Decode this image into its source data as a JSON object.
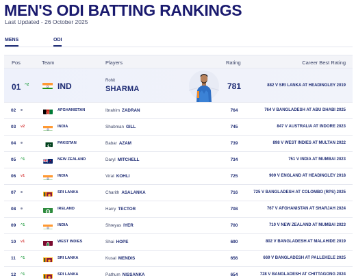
{
  "page": {
    "title": "MEN'S ODI BATTING RANKINGS",
    "updated": "Last Updated - 26 October 2025"
  },
  "tabs": [
    {
      "label": "MENS",
      "active": true
    },
    {
      "label": "ODI",
      "active": true
    }
  ],
  "table": {
    "headers": {
      "pos": "Pos",
      "team": "Team",
      "players": "Players",
      "rating": "Rating",
      "best": "Career Best Rating"
    },
    "top": {
      "pos": "01",
      "move": "2",
      "move_dir": "up",
      "flag": "india-flag-icon",
      "team": "IND",
      "first": "Rohit",
      "last": "SHARMA",
      "rating": "781",
      "best": "882 V SRI LANKA AT HEADINGLEY 2019"
    },
    "rows": [
      {
        "pos": "02",
        "move": "",
        "move_dir": "same",
        "flag": "afghanistan-flag-icon",
        "team": "AFGHANISTAN",
        "first": "Ibrahim",
        "last": "ZADRAN",
        "rating": "764",
        "best": "764 V BANGLADESH AT ABU DHABI 2025"
      },
      {
        "pos": "03",
        "move": "2",
        "move_dir": "down",
        "flag": "india-flag-icon",
        "team": "INDIA",
        "first": "Shubman",
        "last": "GILL",
        "rating": "745",
        "best": "847 V AUSTRALIA AT INDORE 2023"
      },
      {
        "pos": "04",
        "move": "",
        "move_dir": "same",
        "flag": "pakistan-flag-icon",
        "team": "PAKISTAN",
        "first": "Babar",
        "last": "AZAM",
        "rating": "739",
        "best": "898 V WEST INDIES AT MULTAN 2022"
      },
      {
        "pos": "05",
        "move": "1",
        "move_dir": "up",
        "flag": "new-zealand-flag-icon",
        "team": "NEW ZEALAND",
        "first": "Daryl",
        "last": "MITCHELL",
        "rating": "734",
        "best": "751 V INDIA AT MUMBAI 2023"
      },
      {
        "pos": "06",
        "move": "1",
        "move_dir": "down",
        "flag": "india-flag-icon",
        "team": "INDIA",
        "first": "Virat",
        "last": "KOHLI",
        "rating": "725",
        "best": "909 V ENGLAND AT HEADINGLEY 2018"
      },
      {
        "pos": "07",
        "move": "",
        "move_dir": "same",
        "flag": "sri-lanka-flag-icon",
        "team": "SRI LANKA",
        "first": "Charith",
        "last": "ASALANKA",
        "rating": "716",
        "best": "725 V BANGLADESH AT COLOMBO (RPS) 2025"
      },
      {
        "pos": "08",
        "move": "",
        "move_dir": "same",
        "flag": "ireland-flag-icon",
        "team": "IRELAND",
        "first": "Harry",
        "last": "TECTOR",
        "rating": "708",
        "best": "767 V AFGHANISTAN AT SHARJAH 2024"
      },
      {
        "pos": "09",
        "move": "1",
        "move_dir": "up",
        "flag": "india-flag-icon",
        "team": "INDIA",
        "first": "Shreyas",
        "last": "IYER",
        "rating": "700",
        "best": "710 V NEW ZEALAND AT MUMBAI 2023"
      },
      {
        "pos": "10",
        "move": "1",
        "move_dir": "down",
        "flag": "west-indies-flag-icon",
        "team": "WEST INDIES",
        "first": "Shai",
        "last": "HOPE",
        "rating": "690",
        "best": "802 V BANGLADESH AT MALAHIDE 2019"
      },
      {
        "pos": "11",
        "move": "1",
        "move_dir": "up",
        "flag": "sri-lanka-flag-icon",
        "team": "SRI LANKA",
        "first": "Kusal",
        "last": "MENDIS",
        "rating": "656",
        "best": "669 V BANGLADESH AT PALLEKELE 2025"
      },
      {
        "pos": "12",
        "move": "1",
        "move_dir": "up",
        "flag": "sri-lanka-flag-icon",
        "team": "SRI LANKA",
        "first": "Pathum",
        "last": "NISSANKA",
        "rating": "654",
        "best": "728 V BANGLADESH AT CHITTAGONG 2024"
      }
    ]
  },
  "colors": {
    "primary": "#1c2a73",
    "up": "#2ca24a",
    "down": "#d63a3a",
    "header_bg": "#f3f4f8"
  }
}
